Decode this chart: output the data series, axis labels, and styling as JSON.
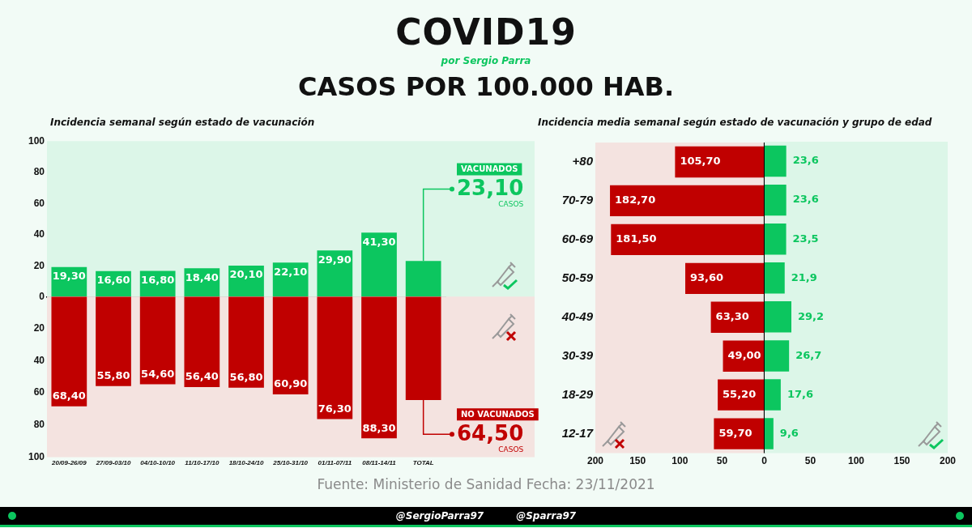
{
  "chart_data": [
    {
      "type": "bar",
      "title": "Incidencia semanal según estado de vacunación",
      "tick_labels": "y",
      "categories": [
        "20/09-26/09",
        "27/09-03/10",
        "04/10-10/10",
        "11/10-17/10",
        "18/10-24/10",
        "25/10-31/10",
        "01/11-07/11",
        "08/11-14/11",
        "TOTAL"
      ],
      "series": [
        {
          "name": "VACUNADOS",
          "color": "#0cc65f",
          "values": [
            19.3,
            16.6,
            16.8,
            18.4,
            20.1,
            22.1,
            29.9,
            41.3,
            23.1
          ],
          "value_labels": [
            "19,30",
            "16,60",
            "16,80",
            "18,40",
            "20,10",
            "22,10",
            "29,90",
            "41,30",
            null
          ]
        }
      ],
      "ylim": [
        0,
        100
      ],
      "yticks": [
        0,
        20,
        40,
        60,
        80,
        100
      ],
      "bands": [
        {
          "axis": "y",
          "from": 0,
          "to": 100,
          "color": "#dcf6e8"
        }
      ],
      "annotations": [
        "COVID19",
        "por Sergio Parra",
        "CASOS POR 100.000 HAB.",
        "Fuente: Ministerio de Sanidad Fecha: 23/11/2021",
        "@SergioParra97",
        "@Sparra97",
        {
          "text": "23,10",
          "x": "TOTAL",
          "y": 23.1
        },
        "CASOS"
      ]
    },
    {
      "type": "bar",
      "categories": [
        "20/09-26/09",
        "27/09-03/10",
        "04/10-10/10",
        "11/10-17/10",
        "18/10-24/10",
        "25/10-31/10",
        "01/11-07/11",
        "08/11-14/11",
        "TOTAL"
      ],
      "series": [
        {
          "name": "NO VACUNADOS",
          "color": "#c00000",
          "values": [
            68.4,
            55.8,
            54.6,
            56.4,
            56.8,
            60.9,
            76.3,
            88.3,
            64.5
          ],
          "value_labels": [
            "68,40",
            "55,80",
            "54,60",
            "56,40",
            "56,80",
            "60,90",
            "76,30",
            "88,30",
            null
          ]
        }
      ],
      "ylim": [
        100,
        0
      ],
      "yticks": [
        20,
        40,
        60,
        80,
        100
      ],
      "bands": [
        {
          "axis": "y",
          "from": 0,
          "to": 100,
          "color": "#f4e3e0"
        }
      ],
      "annotations": [
        {
          "text": "64,50",
          "x": "TOTAL",
          "y": 64.5
        },
        "CASOS"
      ]
    },
    {
      "type": "bar",
      "title": "Incidencia media semanal según estado de vacunación y grupo de edad",
      "orientation": "horizontal",
      "categories": [
        "+80",
        "70-79",
        "60-69",
        "50-59",
        "40-49",
        "30-39",
        "18-29",
        "12-17"
      ],
      "series": [
        {
          "color": "#c00000",
          "values": [
            105.7,
            182.7,
            181.5,
            93.6,
            63.3,
            49.0,
            55.2,
            59.7
          ],
          "value_labels": [
            "105,70",
            "182,70",
            "181,50",
            "93,60",
            "63,30",
            "49,00",
            "55,20",
            "59,70"
          ]
        }
      ],
      "xlim": [
        200,
        0
      ],
      "xticks": [
        200,
        150,
        100,
        50,
        0
      ],
      "bands": [
        {
          "axis": "x",
          "from": 200,
          "to": 0,
          "color": "#f4e3e0"
        }
      ],
      "ref_lines": [
        {
          "axis": "x",
          "value": 0,
          "color": "#000000"
        }
      ]
    },
    {
      "type": "bar",
      "orientation": "horizontal",
      "tick_labels": "x",
      "categories": [
        "+80",
        "70-79",
        "60-69",
        "50-59",
        "40-49",
        "30-39",
        "18-29",
        "12-17"
      ],
      "series": [
        {
          "color": "#0cc65f",
          "values": [
            23.6,
            23.6,
            23.5,
            21.9,
            29.2,
            26.7,
            17.6,
            9.6
          ],
          "value_labels": [
            "23,6",
            "23,6",
            "23,5",
            "21,9",
            "29,2",
            "26,7",
            "17,6",
            "9,6"
          ]
        }
      ],
      "xlim": [
        0,
        200
      ],
      "xticks": [
        50,
        100,
        150,
        200
      ],
      "bands": [
        {
          "axis": "x",
          "from": 0,
          "to": 200,
          "color": "#dcf6e8"
        }
      ]
    }
  ]
}
